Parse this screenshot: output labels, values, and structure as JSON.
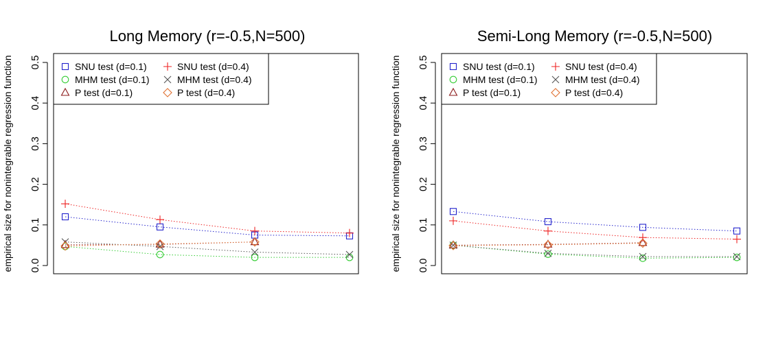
{
  "chart_data": [
    {
      "type": "line",
      "title": "Long Memory (r=-0.5,N=500)",
      "ylabel": "empirical size for nonintegrable regression function",
      "xlabel": "",
      "ylim": [
        0,
        0.5
      ],
      "yticks": [
        "0.0",
        "0.1",
        "0.2",
        "0.3",
        "0.4",
        "0.5"
      ],
      "grid": false,
      "legend": "top-left",
      "x": [
        1,
        2,
        3,
        4
      ],
      "series": [
        {
          "name": "SNU test (d=0.1)",
          "marker": "square",
          "color": "#2222cc",
          "values": [
            0.12,
            0.095,
            0.075,
            0.073
          ]
        },
        {
          "name": "MHM test (d=0.1)",
          "marker": "circle",
          "color": "#33cc33",
          "values": [
            0.047,
            0.027,
            0.02,
            0.02
          ]
        },
        {
          "name": "P test (d=0.1)",
          "marker": "triangle",
          "color": "#8b1a1a",
          "values": [
            0.051,
            0.052,
            0.058,
            null
          ]
        },
        {
          "name": "SNU test (d=0.4)",
          "marker": "plus",
          "color": "#ee2222",
          "values": [
            0.152,
            0.113,
            0.085,
            0.08
          ]
        },
        {
          "name": "MHM test (d=0.4)",
          "marker": "cross",
          "color": "#555555",
          "values": [
            0.058,
            0.047,
            0.033,
            0.027
          ]
        },
        {
          "name": "P test (d=0.4)",
          "marker": "diamond",
          "color": "#e07030",
          "values": [
            0.048,
            0.053,
            0.058,
            null
          ]
        }
      ]
    },
    {
      "type": "line",
      "title": "Semi-Long Memory (r=-0.5,N=500)",
      "ylabel": "empirical size for nonintegrable regression function",
      "xlabel": "",
      "ylim": [
        0,
        0.5
      ],
      "yticks": [
        "0.0",
        "0.1",
        "0.2",
        "0.3",
        "0.4",
        "0.5"
      ],
      "grid": false,
      "legend": "top-left",
      "x": [
        1,
        2,
        3,
        4
      ],
      "series": [
        {
          "name": "SNU test (d=0.1)",
          "marker": "square",
          "color": "#2222cc",
          "values": [
            0.133,
            0.108,
            0.094,
            0.085
          ]
        },
        {
          "name": "MHM test (d=0.1)",
          "marker": "circle",
          "color": "#33cc33",
          "values": [
            0.05,
            0.028,
            0.018,
            0.02
          ]
        },
        {
          "name": "P test (d=0.1)",
          "marker": "triangle",
          "color": "#8b1a1a",
          "values": [
            0.05,
            0.052,
            0.056,
            null
          ]
        },
        {
          "name": "SNU test (d=0.4)",
          "marker": "plus",
          "color": "#ee2222",
          "values": [
            0.11,
            0.085,
            0.069,
            0.065
          ]
        },
        {
          "name": "MHM test (d=0.4)",
          "marker": "cross",
          "color": "#555555",
          "values": [
            0.05,
            0.03,
            0.022,
            0.022
          ]
        },
        {
          "name": "P test (d=0.4)",
          "marker": "diamond",
          "color": "#e07030",
          "values": [
            0.049,
            0.051,
            0.055,
            null
          ]
        }
      ]
    }
  ]
}
